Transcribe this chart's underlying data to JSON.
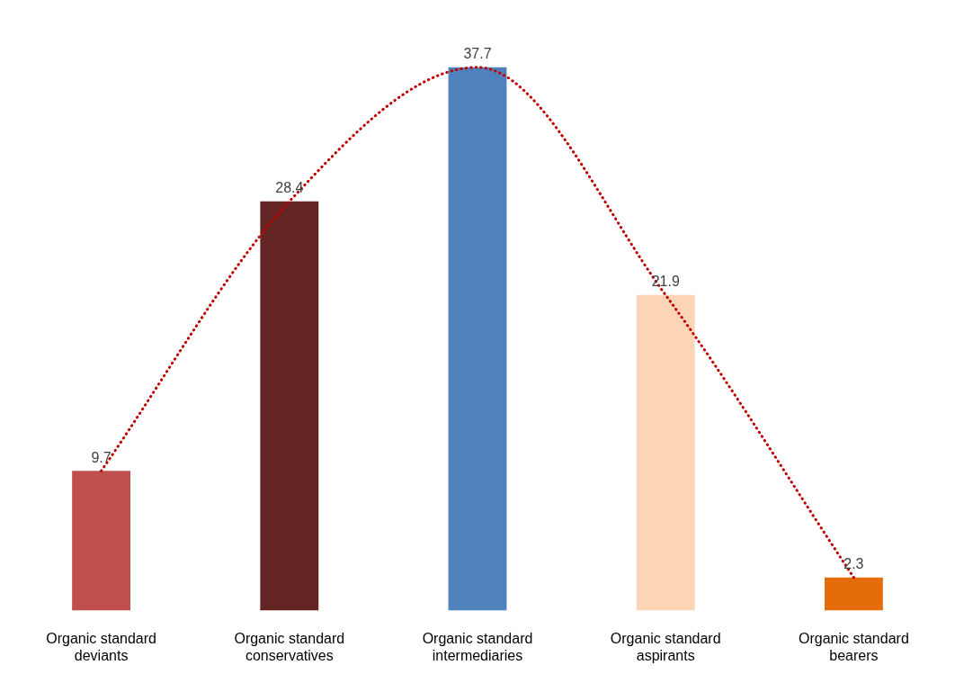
{
  "chart_data": {
    "type": "bar",
    "categories": [
      "Organic standard deviants",
      "Organic standard conservatives",
      "Organic standard intermediaries",
      "Organic standard aspirants",
      "Organic standard bearers"
    ],
    "series": [
      {
        "colors": [
          "#c0504d",
          "#632523",
          "#4f81bd",
          "#fbd5b5",
          "#e46c0a"
        ],
        "values": [
          9.7,
          28.4,
          37.7,
          21.9,
          2.3
        ],
        "value_labels": [
          "9.7",
          "28.4",
          "37.7",
          "21.9",
          "2.3"
        ]
      },
      {
        "type": "line",
        "color": "#c00000",
        "line_style": "dotted",
        "marker": "none",
        "values": [
          9.7,
          28.4,
          37.7,
          21.9,
          2.3
        ]
      }
    ],
    "grid": false,
    "legend": false,
    "tick_labels": "x"
  }
}
